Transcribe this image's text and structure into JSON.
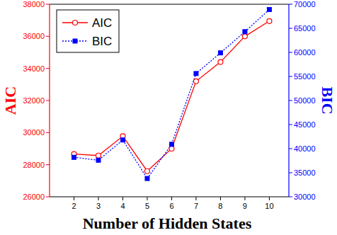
{
  "chart_data": {
    "type": "line",
    "x_label": "Number of Hidden States",
    "y_label": "AIC",
    "y2_label": "BIC",
    "x": [
      2,
      3,
      4,
      5,
      6,
      7,
      8,
      9,
      10
    ],
    "series": [
      {
        "name": "AIC",
        "color": "#ff0000",
        "marker": "open-circle",
        "line_style": "solid",
        "values": [
          28660,
          28570,
          29780,
          27600,
          29000,
          33200,
          34400,
          36000,
          36950
        ]
      },
      {
        "name": "BIC",
        "color": "#0000ff",
        "marker": "square",
        "line_style": "dotted",
        "axis": "y2",
        "values": [
          38200,
          37600,
          41800,
          33800,
          40900,
          55600,
          59900,
          64300,
          68900
        ]
      }
    ],
    "xlim": [
      1,
      10.8
    ],
    "xticks": [
      2,
      3,
      4,
      5,
      6,
      7,
      8,
      9,
      10
    ],
    "ylim": [
      26000,
      38000
    ],
    "yticks": [
      26000,
      28000,
      30000,
      32000,
      34000,
      36000,
      38000
    ],
    "y2lim": [
      30000,
      70000
    ],
    "y2ticks": [
      30000,
      35000,
      40000,
      45000,
      50000,
      55000,
      60000,
      65000,
      70000
    ],
    "legend": "upper-left",
    "grid": false
  }
}
